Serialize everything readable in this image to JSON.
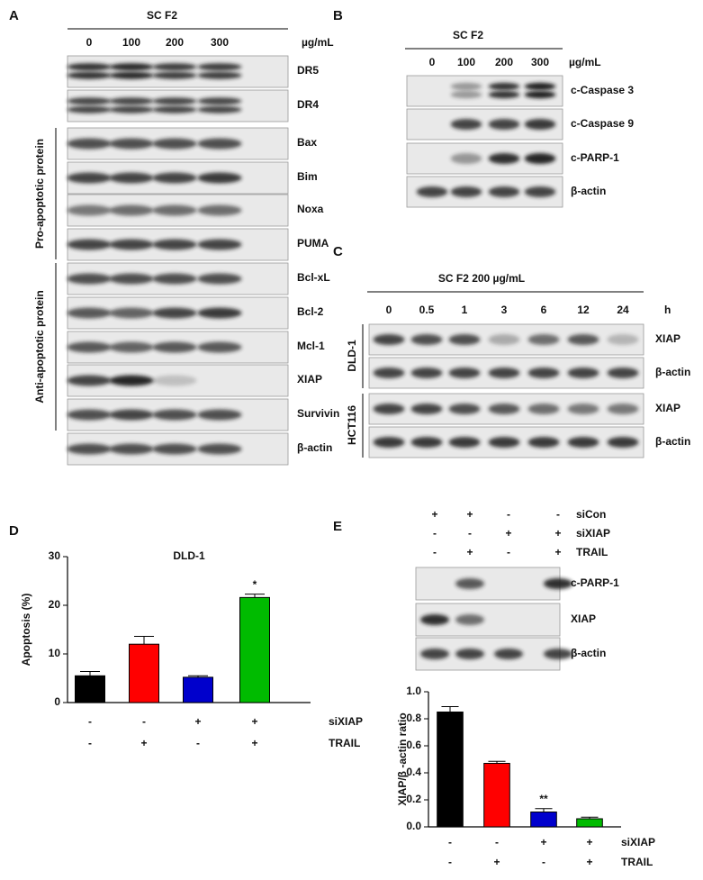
{
  "panel_a": {
    "label": "A",
    "treatment": "SC F2",
    "doses": [
      "0",
      "100",
      "200",
      "300"
    ],
    "unit": "µg/mL",
    "proteins": [
      "DR5",
      "DR4",
      "Bax",
      "Bim",
      "Noxa",
      "PUMA",
      "Bcl-xL",
      "Bcl-2",
      "Mcl-1",
      "XIAP",
      "Survivin",
      "β-actin"
    ],
    "groups": [
      "Pro-apoptotic protein",
      "Anti-apoptotic protein"
    ]
  },
  "panel_b": {
    "label": "B",
    "treatment": "SC F2",
    "doses": [
      "0",
      "100",
      "200",
      "300"
    ],
    "unit": "µg/mL",
    "proteins": [
      "c-Caspase 3",
      "c-Caspase 9",
      "c-PARP-1",
      "β-actin"
    ]
  },
  "panel_c": {
    "label": "C",
    "treatment": "SC F2 200 µg/mL",
    "times": [
      "0",
      "0.5",
      "1",
      "3",
      "6",
      "12",
      "24"
    ],
    "unit": "h",
    "cell_lines": [
      "DLD-1",
      "HCT116"
    ],
    "proteins": [
      "XIAP",
      "β-actin"
    ]
  },
  "panel_e_blot": {
    "label": "E",
    "conditions": [
      {
        "name": "siCon",
        "values": [
          "+",
          "+",
          "-",
          "-"
        ]
      },
      {
        "name": "siXIAP",
        "values": [
          "-",
          "-",
          "+",
          "+"
        ]
      },
      {
        "name": "TRAIL",
        "values": [
          "-",
          "+",
          "-",
          "+"
        ]
      }
    ],
    "proteins": [
      "c-PARP-1",
      "XIAP",
      "β-actin"
    ]
  },
  "chart_data": [
    {
      "type": "bar",
      "panel_label": "D",
      "title": "DLD-1",
      "ylabel": "Apoptosis (%)",
      "values": [
        5.5,
        12,
        5.2,
        21.6
      ],
      "errors": [
        0.9,
        1.6,
        0.3,
        0.7
      ],
      "colors": [
        "#000000",
        "#ff0000",
        "#0000cc",
        "#00bb00"
      ],
      "significance": [
        null,
        null,
        null,
        "*"
      ],
      "ylim": [
        0,
        30
      ],
      "yticks": [
        0,
        10,
        20,
        30
      ],
      "conditions": [
        {
          "name": "siXIAP",
          "values": [
            "-",
            "-",
            "+",
            "+"
          ]
        },
        {
          "name": "TRAIL",
          "values": [
            "-",
            "+",
            "-",
            "+"
          ]
        }
      ]
    },
    {
      "type": "bar",
      "ylabel": "XIAP/β -actin ratio",
      "values": [
        0.85,
        0.47,
        0.11,
        0.06
      ],
      "errors": [
        0.04,
        0.015,
        0.025,
        0.012
      ],
      "colors": [
        "#000000",
        "#ff0000",
        "#0000cc",
        "#00bb00"
      ],
      "significance": [
        null,
        null,
        "**",
        null
      ],
      "ylim": [
        0,
        1
      ],
      "yticks": [
        {
          "value": 0,
          "label": "0.0"
        },
        {
          "value": 0.2,
          "label": "0.2"
        },
        {
          "value": 0.4,
          "label": "0.4"
        },
        {
          "value": 0.6,
          "label": "0.6"
        },
        {
          "value": 0.8,
          "label": "0.8"
        },
        {
          "value": 1,
          "label": "1.0"
        }
      ],
      "conditions": [
        {
          "name": "siXIAP",
          "values": [
            "-",
            "-",
            "+",
            "+"
          ]
        },
        {
          "name": "TRAIL",
          "values": [
            "-",
            "+",
            "-",
            "+"
          ]
        }
      ]
    }
  ]
}
